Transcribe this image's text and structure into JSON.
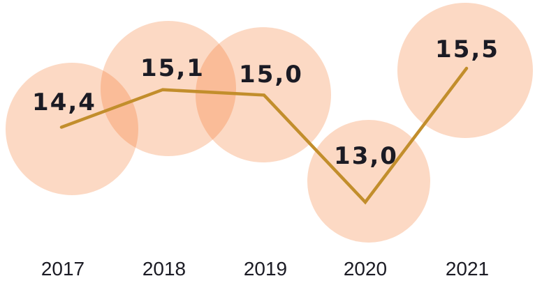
{
  "chart_data": {
    "type": "line",
    "categories": [
      "2017",
      "2018",
      "2019",
      "2020",
      "2021"
    ],
    "values": [
      14.4,
      15.1,
      15.0,
      13.0,
      15.5
    ],
    "value_labels": [
      "14,4",
      "15,1",
      "15,0",
      "13,0",
      "15,5"
    ],
    "decimal_separator": ",",
    "title": "",
    "xlabel": "",
    "ylabel": "",
    "legend_position": "none",
    "grid": false,
    "axes_visible": false,
    "ylim": [
      12.6,
      16.2
    ],
    "colors": {
      "line": "#C28E2C",
      "bubble_fill": "rgba(243, 103, 19, 0.25)",
      "text": "#1B1B24",
      "background": "#FFFFFF"
    },
    "marker_style": "large translucent overlapping circles behind each data point"
  }
}
